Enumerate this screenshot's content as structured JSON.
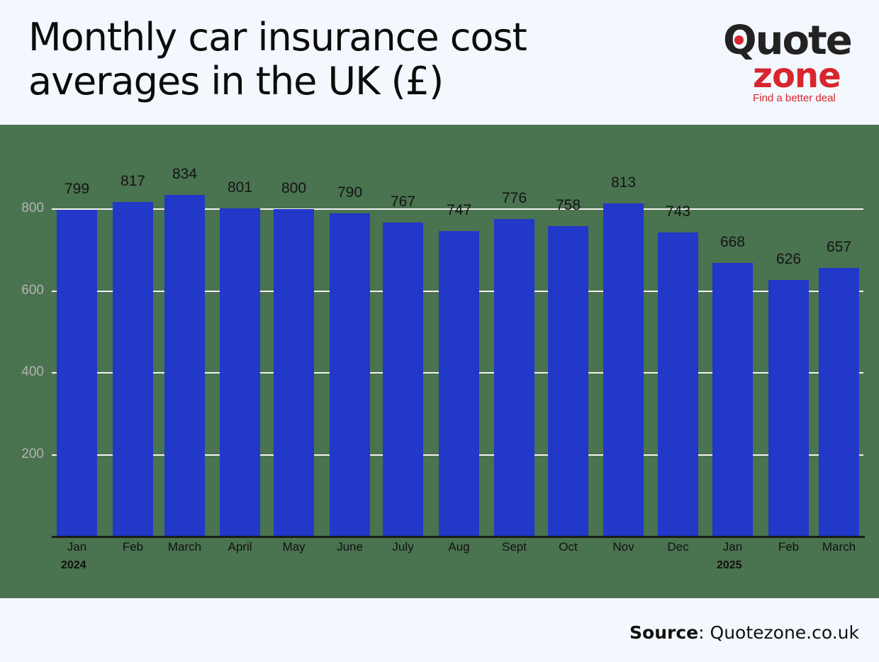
{
  "header": {
    "title_line1": "Monthly car insurance cost",
    "title_line2": "averages in the UK (£)"
  },
  "logo": {
    "word1": "Quote",
    "word2": "zone",
    "tagline": "Find a better deal"
  },
  "footer": {
    "source_label": "Source",
    "source_sep": ":",
    "source_value": " Quotezone.co.uk"
  },
  "colors": {
    "background": "#f3f7fe",
    "panel": "#4a7350",
    "bar": "#2138c9",
    "gridline": "#f2f2f2",
    "brand_red": "#d8262e"
  },
  "chart_data": {
    "type": "bar",
    "title": "Monthly car insurance cost averages in the UK (£)",
    "xlabel": "",
    "ylabel": "",
    "categories": [
      "Jan",
      "Feb",
      "March",
      "April",
      "May",
      "June",
      "July",
      "Aug",
      "Sept",
      "Oct",
      "Nov",
      "Dec",
      "Jan",
      "Feb",
      "March"
    ],
    "year_labels": [
      {
        "index": 0,
        "label": "2024"
      },
      {
        "index": 12,
        "label": "2025"
      }
    ],
    "values": [
      799,
      817,
      834,
      801,
      800,
      790,
      767,
      747,
      776,
      758,
      813,
      743,
      668,
      626,
      657
    ],
    "yticks": [
      200,
      400,
      600,
      800
    ],
    "ylim": [
      0,
      950
    ],
    "grid": true,
    "data_labels": true,
    "legend": null
  }
}
